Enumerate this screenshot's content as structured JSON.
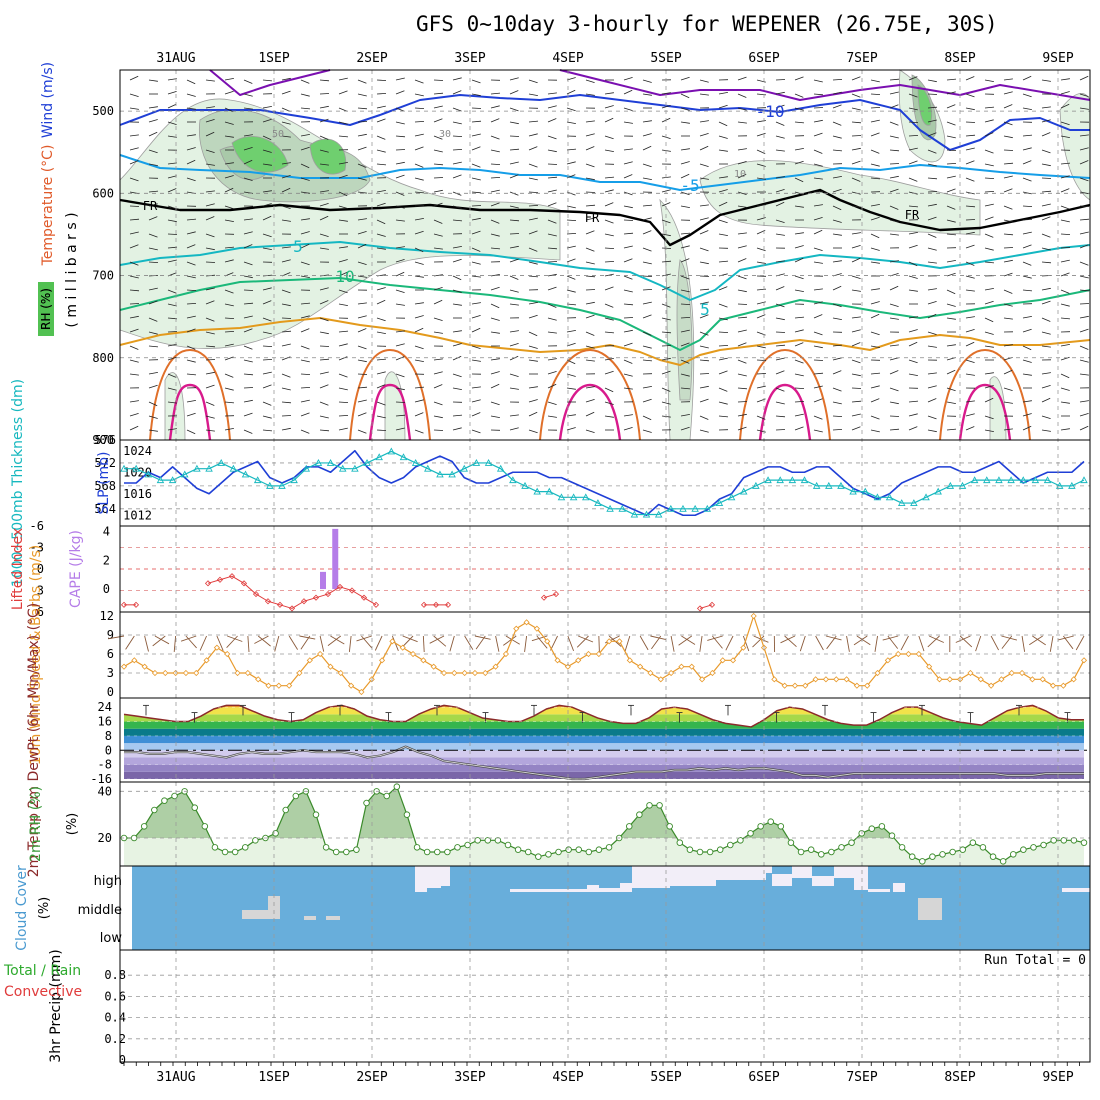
{
  "title": "GFS 0~10day 3-hourly for WEPENER (26.75E, 30S)",
  "days": [
    "31AUG",
    "1SEP",
    "2SEP",
    "3SEP",
    "4SEP",
    "5SEP",
    "6SEP",
    "7SEP",
    "8SEP",
    "9SEP"
  ],
  "run_total": "Run Total = 0",
  "chart_data": [
    {
      "type": "line",
      "panel": "upper-air",
      "ylabel_parts": [
        "RH (%)",
        "Temperature (°C)",
        "Wind (m/s)"
      ],
      "yunit": "( m i l l i b a r s )",
      "yticks": [
        "500",
        "600",
        "700",
        "800",
        "900"
      ],
      "ylim": [
        900,
        450
      ],
      "contour_labels": [
        "-10",
        "-5",
        "FR",
        "5",
        "10",
        "50",
        "30",
        "10"
      ],
      "rh_legend": "RH (%)",
      "colors": {
        "m10": "#7a0fb0",
        "m5": "#1f3fd6",
        "m2": "#159ee8",
        "fr": "#000000",
        "p5": "#14b7c2",
        "p10": "#1bb87a",
        "p15": "#e39a1c",
        "p20": "#e0702a",
        "p25": "#d81a8c"
      }
    },
    {
      "type": "line",
      "panel": "thickness-slp",
      "ylabel_left": "1000~500mb Thickness (dm)",
      "ylabel_right": "SLP (mb)",
      "yticks_left": [
        "576",
        "572",
        "568",
        "564"
      ],
      "yticks_right": [
        "1024",
        "1020",
        "1016",
        "1012"
      ],
      "ylim_left": [
        561,
        576
      ],
      "ylim_right": [
        1010,
        1026
      ],
      "series": [
        {
          "name": "SLP (mb)",
          "color": "#1f3fd6",
          "values": [
            1018,
            1018,
            1020,
            1019,
            1021,
            1019,
            1017,
            1016,
            1018,
            1020,
            1021,
            1022,
            1019,
            1018,
            1019,
            1021,
            1021,
            1020,
            1022,
            1024,
            1021,
            1019,
            1018,
            1019,
            1021,
            1022,
            1023,
            1022,
            1019,
            1018,
            1018,
            1019,
            1020,
            1020,
            1020,
            1019,
            1019,
            1018,
            1017,
            1016,
            1015,
            1014,
            1013,
            1012,
            1014,
            1013,
            1012,
            1012,
            1013,
            1015,
            1016,
            1019,
            1020,
            1021,
            1021,
            1020,
            1020,
            1021,
            1021,
            1019,
            1017,
            1016,
            1015,
            1016,
            1018,
            1019,
            1020,
            1021,
            1021,
            1020,
            1020,
            1021,
            1022,
            1020,
            1018,
            1019,
            1020,
            1020,
            1020,
            1022
          ]
        },
        {
          "name": "1000~500mb Thickness (dm)",
          "color": "#17b8bf",
          "values": [
            571,
            571,
            570,
            569,
            569,
            570,
            571,
            571,
            572,
            571,
            570,
            569,
            568,
            568,
            569,
            571,
            572,
            572,
            571,
            571,
            572,
            573,
            574,
            573,
            572,
            571,
            570,
            570,
            571,
            572,
            572,
            571,
            569,
            568,
            567,
            567,
            566,
            566,
            566,
            565,
            564,
            564,
            563,
            563,
            563,
            564,
            564,
            564,
            564,
            565,
            566,
            567,
            568,
            569,
            569,
            569,
            569,
            568,
            568,
            568,
            567,
            567,
            566,
            566,
            565,
            565,
            566,
            567,
            568,
            568,
            569,
            569,
            569,
            569,
            569,
            569,
            569,
            568,
            568,
            569
          ]
        }
      ]
    },
    {
      "type": "bar",
      "panel": "li-cape",
      "ylabel_left": "Lifted Index",
      "ylabel_right": "CAPE (J/kg)",
      "yticks_left": [
        "-6",
        "-3",
        "0",
        "3",
        "6"
      ],
      "yticks_right": [
        "4",
        "2",
        "0"
      ],
      "ylim_left": [
        6,
        -6
      ],
      "ylim_right": [
        -1.6,
        4.4
      ],
      "series": [
        {
          "name": "Lifted Index",
          "color": "#e03c3c",
          "values": [
            5,
            5,
            null,
            null,
            null,
            null,
            null,
            2,
            1.5,
            1,
            2,
            3.5,
            4.5,
            5,
            5.5,
            4.5,
            4,
            3.5,
            2.5,
            3,
            4,
            5,
            null,
            null,
            null,
            5,
            5,
            5,
            null,
            null,
            null,
            null,
            null,
            null,
            null,
            4,
            3.5,
            null,
            null,
            null,
            null,
            null,
            null,
            null,
            null,
            null,
            null,
            null,
            5.5,
            5,
            null,
            null,
            null,
            null,
            null,
            null,
            null,
            null,
            null,
            null,
            null,
            null,
            null,
            null,
            null,
            null,
            null,
            null,
            null,
            null,
            null,
            null,
            null,
            null,
            null,
            null,
            null,
            null,
            null,
            null,
            null
          ]
        },
        {
          "name": "CAPE (J/kg)",
          "color": "#b57de8",
          "bars": [
            {
              "day": 1.5,
              "value": 1.2
            },
            {
              "day": 1.625,
              "value": 4.2
            }
          ]
        }
      ]
    },
    {
      "type": "line",
      "panel": "wind10m",
      "ylabel": "10m Wind Speed & Barbs (m/s)",
      "yticks": [
        "12",
        "9",
        "6",
        "3",
        "0"
      ],
      "ylim": [
        0,
        12
      ],
      "series": [
        {
          "name": "10m Wind Speed",
          "color": "#e89a2c",
          "values": [
            4,
            5,
            4,
            3,
            3,
            3,
            3,
            3,
            5,
            7,
            6,
            3,
            3,
            2,
            1,
            1,
            1,
            3,
            5,
            6,
            4,
            3,
            1,
            0,
            2,
            5,
            8,
            7,
            6,
            5,
            4,
            3,
            3,
            3,
            3,
            3,
            4,
            6,
            10,
            11,
            10,
            8,
            5,
            4,
            5,
            6,
            6,
            8,
            8,
            5,
            4,
            3,
            2,
            3,
            4,
            4,
            2,
            3,
            5,
            5,
            7,
            12,
            7,
            2,
            1,
            1,
            1,
            2,
            2,
            2,
            2,
            1,
            1,
            3,
            5,
            6,
            6,
            6,
            4,
            2,
            2,
            2,
            3,
            2,
            1,
            2,
            3,
            3,
            2,
            2,
            1,
            1,
            2,
            5
          ]
        }
      ]
    },
    {
      "type": "area",
      "panel": "temperature",
      "ylabel": "2m Temp 2m DewPt (6hr Min/Max) (°C)",
      "yticks": [
        "24",
        "16",
        "8",
        "0",
        "-8",
        "-16"
      ],
      "ylim": [
        -16,
        28
      ],
      "series": [
        {
          "name": "2m Temp",
          "color": "#8b2a2a",
          "values": [
            20,
            19,
            18,
            17,
            16,
            16,
            19,
            23,
            25,
            25,
            22,
            19,
            17,
            16,
            17,
            21,
            24,
            25,
            23,
            19,
            17,
            16,
            16,
            20,
            23,
            25,
            24,
            21,
            18,
            17,
            16,
            16,
            19,
            23,
            25,
            24,
            21,
            18,
            16,
            15,
            15,
            18,
            23,
            24,
            23,
            20,
            17,
            15,
            14,
            13,
            17,
            22,
            24,
            23,
            20,
            17,
            15,
            14,
            14,
            17,
            21,
            24,
            24,
            21,
            18,
            16,
            15,
            14,
            18,
            22,
            24,
            25,
            22,
            18,
            17,
            17
          ]
        },
        {
          "name": "2m DewPt",
          "color": "#808080",
          "values": [
            -1,
            -1,
            -2,
            -2,
            -1,
            -1,
            -2,
            -3,
            -4,
            -2,
            -1,
            -2,
            -2,
            -1,
            0,
            -1,
            -1,
            -1,
            -2,
            -4,
            -3,
            -1,
            2,
            -1,
            -3,
            -6,
            -7,
            -8,
            -9,
            -10,
            -11,
            -12,
            -13,
            -14,
            -15,
            -16,
            -16,
            -15,
            -14,
            -13,
            -12,
            -12,
            -12,
            -11,
            -11,
            -10,
            -11,
            -10,
            -11,
            -10,
            -10,
            -11,
            -12,
            -14,
            -14,
            -15,
            -14,
            -13,
            -13,
            -13,
            -13,
            -13,
            -13,
            -13,
            -13,
            -13,
            -13,
            -13,
            -13,
            -14,
            -14,
            -14,
            -13,
            -13,
            -13,
            -13
          ]
        }
      ]
    },
    {
      "type": "area",
      "panel": "rh2m",
      "ylabel": "2m RH (%)",
      "yticks": [
        "40",
        "20"
      ],
      "ylim": [
        8,
        44
      ],
      "series": [
        {
          "name": "2m RH",
          "color": "#3a8a2a",
          "values": [
            20,
            20,
            25,
            32,
            36,
            38,
            40,
            33,
            25,
            16,
            14,
            14,
            16,
            19,
            20,
            22,
            32,
            38,
            40,
            30,
            16,
            14,
            14,
            15,
            35,
            40,
            38,
            42,
            30,
            16,
            14,
            14,
            14,
            16,
            17,
            19,
            19,
            19,
            17,
            15,
            14,
            12,
            13,
            14,
            15,
            15,
            14,
            15,
            16,
            20,
            25,
            30,
            34,
            34,
            25,
            18,
            15,
            14,
            14,
            15,
            17,
            19,
            22,
            25,
            27,
            25,
            18,
            14,
            15,
            13,
            14,
            16,
            18,
            22,
            24,
            25,
            21,
            16,
            12,
            10,
            12,
            13,
            14,
            15,
            18,
            16,
            12,
            10,
            13,
            15,
            16,
            17,
            19,
            19,
            19,
            18
          ]
        }
      ]
    },
    {
      "type": "bar",
      "panel": "cloud",
      "ylabel": "Cloud Cover (%)",
      "yticks": [
        "high",
        "middle",
        "low"
      ],
      "colors": {
        "cover": "#68aedb",
        "clear": "#f2eef8",
        "mid_clear": "#d6d6d6"
      }
    },
    {
      "type": "bar",
      "panel": "precip",
      "ylabel_left_parts": [
        "Total / Rain",
        "Convective"
      ],
      "ylabel": "3hr Precip (mm)",
      "yticks": [
        "0.8",
        "0.6",
        "0.4",
        "0.2",
        "0"
      ],
      "ylim": [
        0,
        1
      ],
      "values": []
    }
  ]
}
